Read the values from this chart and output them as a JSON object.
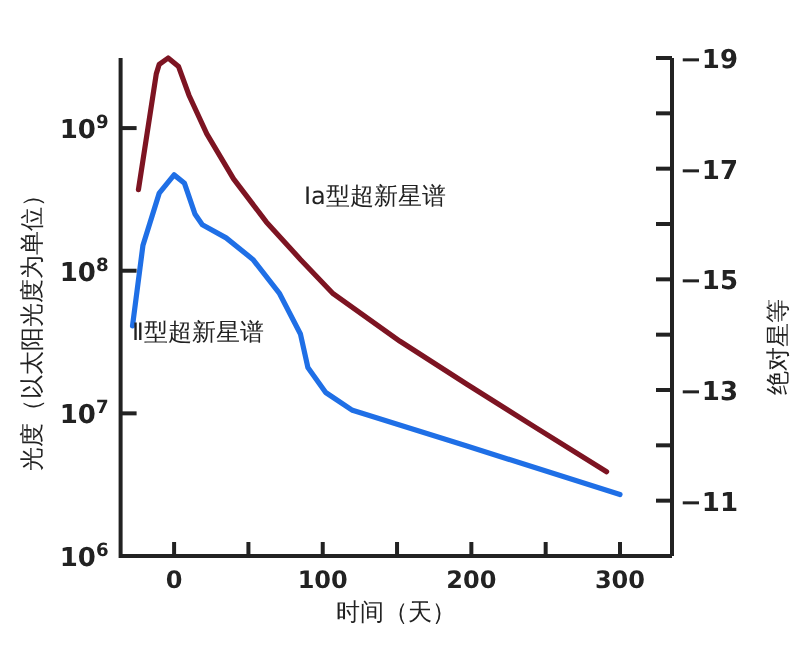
{
  "chart_data": {
    "type": "line",
    "xlabel": "时间（天）",
    "ylabel": "光度（以太阳光度为单位）",
    "y2label": "绝对星等",
    "log": "y",
    "grid": false,
    "legend": false,
    "marker": "none",
    "line_style": "solid",
    "xlim": [
      -36,
      335
    ],
    "xticks": [
      0,
      {
        "value": 50,
        "label": null
      },
      100,
      {
        "value": 150,
        "label": null
      },
      200,
      {
        "value": 250,
        "label": null
      },
      300
    ],
    "ylim": [
      1000000,
      3100000000
    ],
    "yticks": [
      {
        "value": 1000000,
        "label": "10$^{6}$"
      },
      {
        "value": 10000000,
        "label": "10$^{7}$"
      },
      {
        "value": 100000000,
        "label": "10$^{8}$"
      },
      {
        "value": 1000000000,
        "label": "10$^{9}$"
      }
    ],
    "y2lim": [
      -10,
      -19
    ],
    "y2ticks": [
      {
        "value": -11,
        "label": "−11"
      },
      {
        "value": -12,
        "label": null
      },
      {
        "value": -13,
        "label": "−13"
      },
      {
        "value": -14,
        "label": null
      },
      {
        "value": -15,
        "label": "−15"
      },
      {
        "value": -16,
        "label": null
      },
      {
        "value": -17,
        "label": "−17"
      },
      {
        "value": -18,
        "label": null
      },
      {
        "value": -19,
        "label": "−19"
      }
    ],
    "series": [
      {
        "name": "Ⅰa型超新星谱",
        "color": "#7d1422",
        "x": [
          -24,
          -12,
          -10,
          -4,
          3,
          10,
          22,
          40,
          62,
          85,
          107,
          152,
          197,
          242,
          291
        ],
        "values": [
          370000000,
          2400000000,
          2800000000,
          3100000000,
          2700000000,
          1700000000,
          910000000,
          440000000,
          220000000,
          120000000,
          69000000,
          32000000,
          16000000,
          8100000,
          3900000
        ]
      },
      {
        "name": "Ⅱ型超新星谱",
        "color": "#1f6fe6",
        "x": [
          -28,
          -21,
          -10,
          0,
          7,
          14,
          19,
          35,
          53,
          71,
          85,
          90,
          102,
          120,
          197,
          300
        ],
        "values": [
          41000000,
          150000000,
          350000000,
          470000000,
          410000000,
          250000000,
          210000000,
          170000000,
          120000000,
          69000000,
          36000000,
          21000000,
          14000000,
          10500000,
          5900000,
          2700000
        ]
      }
    ]
  }
}
